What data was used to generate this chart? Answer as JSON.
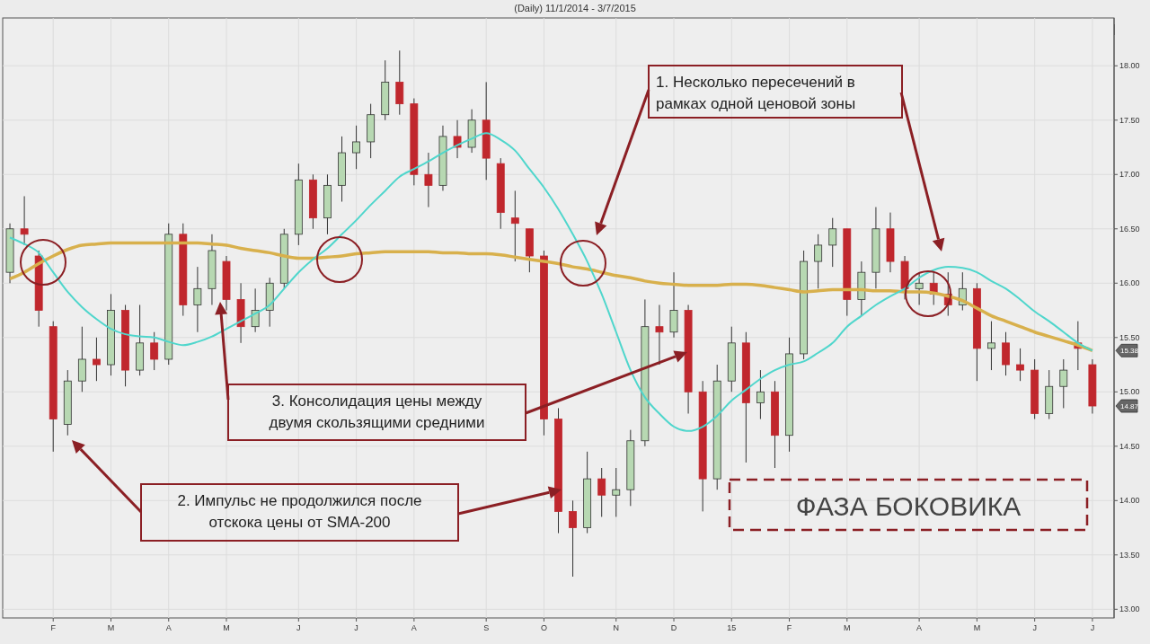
{
  "chart_data": {
    "type": "candlestick",
    "title": "(Daily)  11/1/2014 - 3/7/2015",
    "categories": [
      null,
      null,
      null,
      "F",
      null,
      null,
      null,
      "M",
      null,
      null,
      null,
      "A",
      null,
      null,
      null,
      "M",
      null,
      null,
      null,
      null,
      "J",
      null,
      null,
      null,
      "J",
      null,
      null,
      null,
      "A",
      null,
      null,
      null,
      null,
      "S",
      null,
      null,
      null,
      "O",
      null,
      null,
      null,
      null,
      "N",
      null,
      null,
      null,
      "D",
      null,
      null,
      null,
      "15",
      null,
      null,
      null,
      "F",
      null,
      null,
      null,
      "M",
      null,
      null,
      null,
      null,
      "A",
      null,
      null,
      null,
      "M",
      null,
      null,
      null,
      "J",
      null,
      null,
      null,
      "J"
    ],
    "ohlc": [
      [
        16.1,
        16.55,
        16.0,
        16.5
      ],
      [
        16.5,
        16.8,
        16.35,
        16.45
      ],
      [
        16.25,
        16.3,
        15.6,
        15.75
      ],
      [
        15.6,
        15.65,
        14.45,
        14.75
      ],
      [
        14.7,
        15.2,
        14.6,
        15.1
      ],
      [
        15.1,
        15.6,
        15.0,
        15.3
      ],
      [
        15.3,
        15.5,
        15.1,
        15.25
      ],
      [
        15.25,
        15.9,
        15.15,
        15.75
      ],
      [
        15.75,
        15.8,
        15.05,
        15.2
      ],
      [
        15.2,
        15.8,
        15.15,
        15.45
      ],
      [
        15.45,
        15.55,
        15.2,
        15.3
      ],
      [
        15.3,
        16.55,
        15.25,
        16.45
      ],
      [
        16.45,
        16.55,
        15.7,
        15.8
      ],
      [
        15.8,
        16.15,
        15.55,
        15.95
      ],
      [
        15.95,
        16.45,
        15.8,
        16.3
      ],
      [
        16.2,
        16.25,
        15.75,
        15.85
      ],
      [
        15.85,
        16.0,
        15.45,
        15.6
      ],
      [
        15.6,
        15.95,
        15.55,
        15.75
      ],
      [
        15.75,
        16.05,
        15.6,
        16.0
      ],
      [
        16.0,
        16.5,
        15.95,
        16.45
      ],
      [
        16.45,
        17.1,
        16.35,
        16.95
      ],
      [
        16.95,
        17.0,
        16.5,
        16.6
      ],
      [
        16.6,
        17.0,
        16.45,
        16.9
      ],
      [
        16.9,
        17.35,
        16.75,
        17.2
      ],
      [
        17.2,
        17.45,
        17.05,
        17.3
      ],
      [
        17.3,
        17.65,
        17.15,
        17.55
      ],
      [
        17.55,
        18.05,
        17.5,
        17.85
      ],
      [
        17.85,
        18.14,
        17.55,
        17.65
      ],
      [
        17.65,
        17.7,
        16.9,
        17.0
      ],
      [
        17.0,
        17.2,
        16.7,
        16.9
      ],
      [
        16.9,
        17.45,
        16.85,
        17.35
      ],
      [
        17.35,
        17.5,
        17.15,
        17.25
      ],
      [
        17.25,
        17.6,
        17.2,
        17.5
      ],
      [
        17.5,
        17.85,
        16.95,
        17.15
      ],
      [
        17.1,
        17.15,
        16.5,
        16.65
      ],
      [
        16.6,
        16.85,
        16.2,
        16.55
      ],
      [
        16.5,
        16.5,
        16.1,
        16.25
      ],
      [
        16.25,
        16.3,
        14.6,
        14.75
      ],
      [
        14.75,
        14.85,
        13.7,
        13.9
      ],
      [
        13.9,
        14.0,
        13.3,
        13.75
      ],
      [
        13.75,
        14.45,
        13.7,
        14.2
      ],
      [
        14.2,
        14.3,
        13.85,
        14.05
      ],
      [
        14.05,
        14.3,
        13.85,
        14.1
      ],
      [
        14.1,
        14.65,
        13.95,
        14.55
      ],
      [
        14.55,
        15.85,
        14.5,
        15.6
      ],
      [
        15.6,
        15.8,
        15.25,
        15.55
      ],
      [
        15.55,
        16.1,
        15.5,
        15.75
      ],
      [
        15.75,
        15.8,
        14.8,
        15.0
      ],
      [
        15.0,
        15.1,
        13.9,
        14.2
      ],
      [
        14.2,
        15.25,
        14.1,
        15.1
      ],
      [
        15.1,
        15.6,
        15.0,
        15.45
      ],
      [
        15.45,
        15.55,
        14.35,
        14.9
      ],
      [
        14.9,
        15.2,
        14.75,
        15.0
      ],
      [
        15.0,
        15.1,
        14.3,
        14.6
      ],
      [
        14.6,
        15.5,
        14.45,
        15.35
      ],
      [
        15.35,
        16.3,
        15.3,
        16.2
      ],
      [
        16.2,
        16.45,
        15.95,
        16.35
      ],
      [
        16.35,
        16.6,
        16.15,
        16.5
      ],
      [
        16.5,
        16.5,
        15.7,
        15.85
      ],
      [
        15.85,
        16.2,
        15.7,
        16.1
      ],
      [
        16.1,
        16.7,
        15.95,
        16.5
      ],
      [
        16.5,
        16.65,
        16.1,
        16.2
      ],
      [
        16.2,
        16.25,
        15.85,
        15.95
      ],
      [
        15.95,
        16.1,
        15.8,
        16.0
      ],
      [
        16.0,
        16.1,
        15.8,
        15.9
      ],
      [
        15.9,
        16.1,
        15.7,
        15.8
      ],
      [
        15.8,
        16.1,
        15.75,
        15.95
      ],
      [
        15.95,
        16.0,
        15.1,
        15.4
      ],
      [
        15.4,
        15.65,
        15.2,
        15.45
      ],
      [
        15.45,
        15.55,
        15.15,
        15.25
      ],
      [
        15.25,
        15.4,
        15.1,
        15.2
      ],
      [
        15.2,
        15.3,
        14.75,
        14.8
      ],
      [
        14.8,
        15.2,
        14.75,
        15.05
      ],
      [
        15.05,
        15.3,
        14.85,
        15.2
      ],
      [
        15.45,
        15.65,
        15.2,
        15.4
      ],
      [
        15.25,
        15.3,
        14.8,
        14.87
      ]
    ],
    "series": [
      {
        "type": "line",
        "color": "#d8b04c",
        "values": [
          16.04,
          16.1,
          16.18,
          16.25,
          16.31,
          16.35,
          16.36,
          16.37,
          16.37,
          16.37,
          16.37,
          16.37,
          16.37,
          16.37,
          16.36,
          16.35,
          16.32,
          16.3,
          16.28,
          16.25,
          16.23,
          16.23,
          16.24,
          16.25,
          16.27,
          16.28,
          16.29,
          16.29,
          16.29,
          16.29,
          16.28,
          16.28,
          16.27,
          16.27,
          16.26,
          16.24,
          16.22,
          16.2,
          16.18,
          16.15,
          16.13,
          16.1,
          16.07,
          16.05,
          16.02,
          16.0,
          15.99,
          15.98,
          15.98,
          15.98,
          15.99,
          15.99,
          15.98,
          15.96,
          15.94,
          15.92,
          15.93,
          15.94,
          15.94,
          15.94,
          15.93,
          15.93,
          15.92,
          15.92,
          15.91,
          15.88,
          15.84,
          15.77,
          15.7,
          15.65,
          15.6,
          15.55,
          15.51,
          15.47,
          15.43,
          15.38
        ]
      },
      {
        "type": "line",
        "color": "#4fd6cc",
        "values": [
          16.42,
          16.36,
          16.28,
          16.1,
          15.92,
          15.78,
          15.67,
          15.58,
          15.53,
          15.51,
          15.5,
          15.46,
          15.43,
          15.46,
          15.51,
          15.58,
          15.65,
          15.72,
          15.8,
          15.95,
          16.1,
          16.22,
          16.32,
          16.45,
          16.58,
          16.72,
          16.85,
          16.98,
          17.05,
          17.12,
          17.2,
          17.27,
          17.33,
          17.38,
          17.32,
          17.22,
          17.05,
          16.88,
          16.68,
          16.45,
          16.2,
          15.9,
          15.55,
          15.2,
          14.95,
          14.8,
          14.68,
          14.64,
          14.68,
          14.78,
          14.92,
          15.02,
          15.12,
          15.2,
          15.25,
          15.28,
          15.36,
          15.45,
          15.6,
          15.7,
          15.8,
          15.88,
          15.95,
          16.05,
          16.12,
          16.15,
          16.14,
          16.1,
          16.02,
          15.95,
          15.85,
          15.74,
          15.65,
          15.55,
          15.45,
          15.38
        ]
      }
    ],
    "ylim": [
      12.92,
      18.44
    ],
    "yticks": [
      {
        "value": 13,
        "label": "13.00"
      },
      {
        "value": 13.5,
        "label": "13.50"
      },
      {
        "value": 14,
        "label": "14.00"
      },
      {
        "value": 14.5,
        "label": "14.50"
      },
      {
        "value": 15,
        "label": "15.00"
      },
      {
        "value": 15.5,
        "label": "15.50"
      },
      {
        "value": 16,
        "label": "16.00"
      },
      {
        "value": 16.5,
        "label": "16.50"
      },
      {
        "value": 17,
        "label": "17.00"
      },
      {
        "value": 17.5,
        "label": "17.50"
      },
      {
        "value": 18,
        "label": "18.00"
      }
    ],
    "grid": true,
    "annotations": [
      "1. Несколько пересечений в\nрамках одной ценовой зоны",
      "2. Импульс не продолжился после\nотскока цены от SMA-200",
      "3. Консолидация цены между\nдвумя скользящими средними",
      "ФАЗА БОКОВИКА",
      "15.38",
      "14.87"
    ]
  }
}
